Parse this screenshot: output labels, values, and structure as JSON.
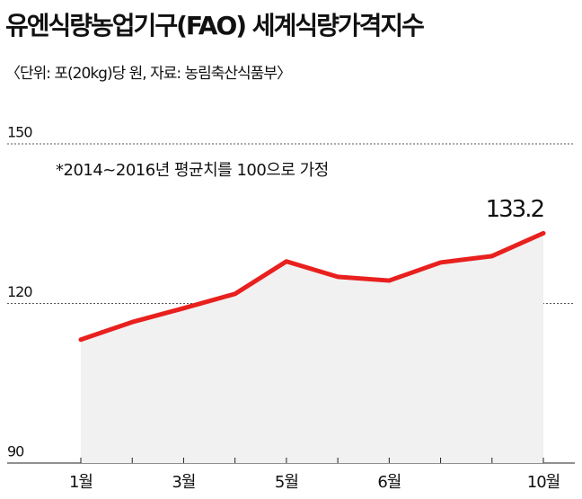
{
  "chart_data": {
    "type": "line",
    "title": "유엔식량농업기구(FAO) 세계식량가격지수",
    "subtitle": "〈단위: 포(20kg)당 원, 자료: 농림축산식품부〉",
    "annotation": "*2014~2016년 평균치를 100으로 가정",
    "categories": [
      "1월",
      null,
      "3월",
      null,
      "5월",
      null,
      "6월",
      null,
      null,
      "10월"
    ],
    "values": [
      113.2,
      116.5,
      119.1,
      121.8,
      127.9,
      125.0,
      124.3,
      127.7,
      128.9,
      133.2
    ],
    "value_labels": [
      null,
      null,
      null,
      null,
      null,
      null,
      null,
      null,
      null,
      "133.2"
    ],
    "color": "#e8201e",
    "area_color": "#f1f1f1",
    "ylim": [
      90,
      150
    ],
    "yticks": [
      90,
      120,
      150
    ],
    "grid": true
  }
}
